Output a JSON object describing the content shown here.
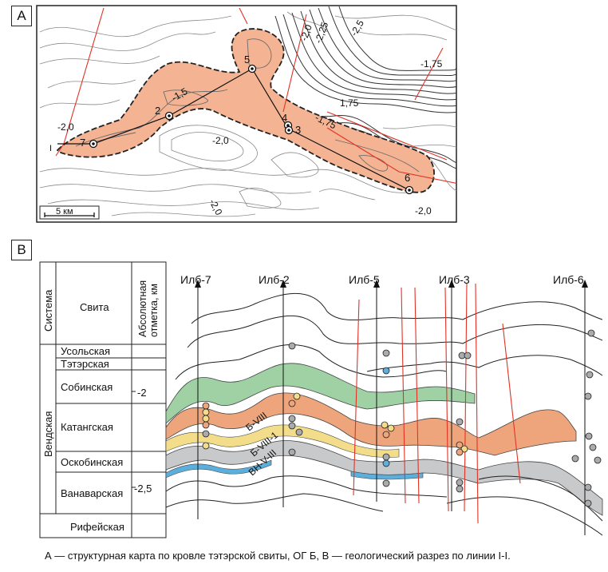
{
  "panel_a": {
    "tag": "A",
    "scale_label": "5 км",
    "contours": [
      {
        "id": "c1",
        "label": "-2,0"
      },
      {
        "id": "c2",
        "label": "-2,25"
      },
      {
        "id": "c3",
        "label": "-2,5"
      },
      {
        "id": "c4",
        "label": "-1,75"
      },
      {
        "id": "c5",
        "label": "1,75"
      },
      {
        "id": "c6",
        "label": "-1,75"
      },
      {
        "id": "c7",
        "label": "-1,5"
      },
      {
        "id": "c8",
        "label": "-2,0"
      },
      {
        "id": "c9",
        "label": "-2,0"
      },
      {
        "id": "c10",
        "label": "-2,0"
      },
      {
        "id": "c11",
        "label": "-2,0"
      }
    ],
    "wells": [
      {
        "id": "w5",
        "label": "5"
      },
      {
        "id": "w2",
        "label": "2"
      },
      {
        "id": "w7",
        "label": "7"
      },
      {
        "id": "w4",
        "label": "4"
      },
      {
        "id": "w3",
        "label": "3"
      },
      {
        "id": "w6",
        "label": "6"
      }
    ],
    "section_end_label": "I"
  },
  "panel_b": {
    "tag": "B",
    "headers": {
      "system": "Система",
      "suite": "Свита",
      "altitude": "Абсолютная отметка, км"
    },
    "systems": [
      {
        "id": "vend",
        "label": "Вендская"
      }
    ],
    "suites": [
      {
        "id": "usol",
        "label": "Усольская"
      },
      {
        "id": "teter",
        "label": "Тэтэрская"
      },
      {
        "id": "sobin",
        "label": "Собинская"
      },
      {
        "id": "katang",
        "label": "Катангская"
      },
      {
        "id": "oskob",
        "label": "Оскобинская"
      },
      {
        "id": "vanavar",
        "label": "Ванаварская"
      },
      {
        "id": "rifey",
        "label": "Рифейская"
      }
    ],
    "altitude_ticks": [
      {
        "id": "t1",
        "label": "-2"
      },
      {
        "id": "t2",
        "label": "-2,5"
      }
    ],
    "wells": [
      {
        "id": "ilb7",
        "label": "Илб-7"
      },
      {
        "id": "ilb2",
        "label": "Илб-2"
      },
      {
        "id": "ilb5",
        "label": "Илб-5"
      },
      {
        "id": "ilb3",
        "label": "Илб-3"
      },
      {
        "id": "ilb6",
        "label": "Илб-6"
      }
    ],
    "horizons": [
      {
        "id": "bv8",
        "label": "Б-VIII"
      },
      {
        "id": "bv81",
        "label": "Б-VIII-1"
      },
      {
        "id": "vnv8",
        "label": "ВН-V-III"
      }
    ],
    "colors": {
      "map_fill": "#f4b493",
      "green_layer": "#9fd1a5",
      "orange_layer": "#efa57c",
      "grey_layer": "#c7c9cb",
      "yellow_layer": "#f3dd8b",
      "blue_layer": "#5cafdc",
      "fault": "#e23226"
    }
  },
  "caption": "А — структурная карта по кровле тэтэрской свиты, ОГ Б, В — геологический разрез по линии I-I."
}
